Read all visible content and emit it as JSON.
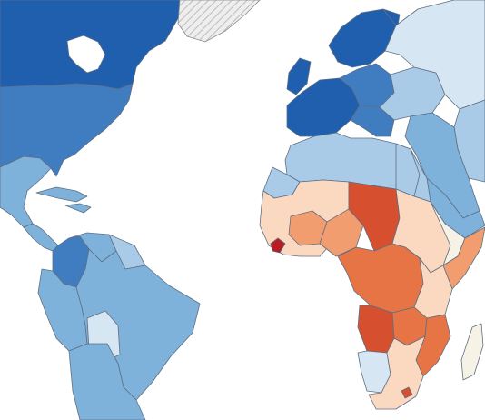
{
  "map": {
    "type": "choropleth",
    "legend": "none",
    "palette": {
      "dark_blue": "#1f5fae",
      "mid_blue": "#3f7dc0",
      "light_blue": "#7fb2db",
      "pale_blue": "#a9cbe8",
      "very_pale_blue": "#d6e6f3",
      "neutral": "#f6f3e6",
      "pale_orange": "#fbd9c1",
      "orange": "#f29d6f",
      "dark_orange": "#e67444",
      "red": "#d64f2f",
      "dark_red": "#b81d24",
      "nodata_hatch": "#d9d9d9"
    },
    "regions": [
      {
        "id": "canada",
        "tone": "dark_blue"
      },
      {
        "id": "greenland",
        "tone": "nodata_hatch"
      },
      {
        "id": "usa",
        "tone": "mid_blue"
      },
      {
        "id": "mexico",
        "tone": "light_blue"
      },
      {
        "id": "central-america",
        "tone": "light_blue"
      },
      {
        "id": "caribbean",
        "tone": "light_blue"
      },
      {
        "id": "colombia",
        "tone": "mid_blue"
      },
      {
        "id": "venezuela",
        "tone": "light_blue"
      },
      {
        "id": "guianas",
        "tone": "pale_blue"
      },
      {
        "id": "ecuador-peru",
        "tone": "light_blue"
      },
      {
        "id": "brazil",
        "tone": "light_blue"
      },
      {
        "id": "bolivia",
        "tone": "very_pale_blue"
      },
      {
        "id": "chile-argentina",
        "tone": "light_blue"
      },
      {
        "id": "scandinavia",
        "tone": "dark_blue"
      },
      {
        "id": "western-europe",
        "tone": "dark_blue"
      },
      {
        "id": "central-europe",
        "tone": "mid_blue"
      },
      {
        "id": "eastern-europe",
        "tone": "pale_blue"
      },
      {
        "id": "russia",
        "tone": "very_pale_blue"
      },
      {
        "id": "north-africa",
        "tone": "pale_blue"
      },
      {
        "id": "middle-east",
        "tone": "light_blue"
      },
      {
        "id": "west-africa",
        "tone": "pale_orange"
      },
      {
        "id": "sahel",
        "tone": "orange"
      },
      {
        "id": "chad",
        "tone": "red"
      },
      {
        "id": "central-africa",
        "tone": "dark_orange"
      },
      {
        "id": "angola",
        "tone": "red"
      },
      {
        "id": "liberia",
        "tone": "dark_red"
      },
      {
        "id": "east-africa",
        "tone": "pale_orange"
      },
      {
        "id": "somalia-region",
        "tone": "neutral"
      },
      {
        "id": "mozambique",
        "tone": "dark_orange"
      },
      {
        "id": "southern-africa",
        "tone": "pale_orange"
      },
      {
        "id": "namibia",
        "tone": "very_pale_blue"
      },
      {
        "id": "madagascar",
        "tone": "neutral"
      }
    ]
  }
}
